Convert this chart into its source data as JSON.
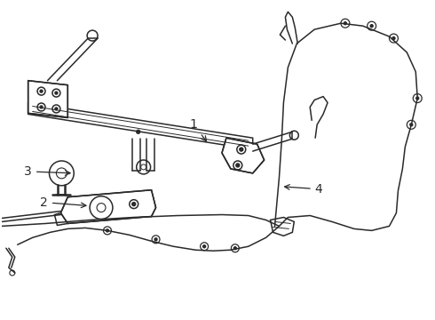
{
  "bg_color": "#ffffff",
  "line_color": "#2a2a2a",
  "lw": 1.1,
  "lw_thick": 1.8,
  "fontsize": 10
}
